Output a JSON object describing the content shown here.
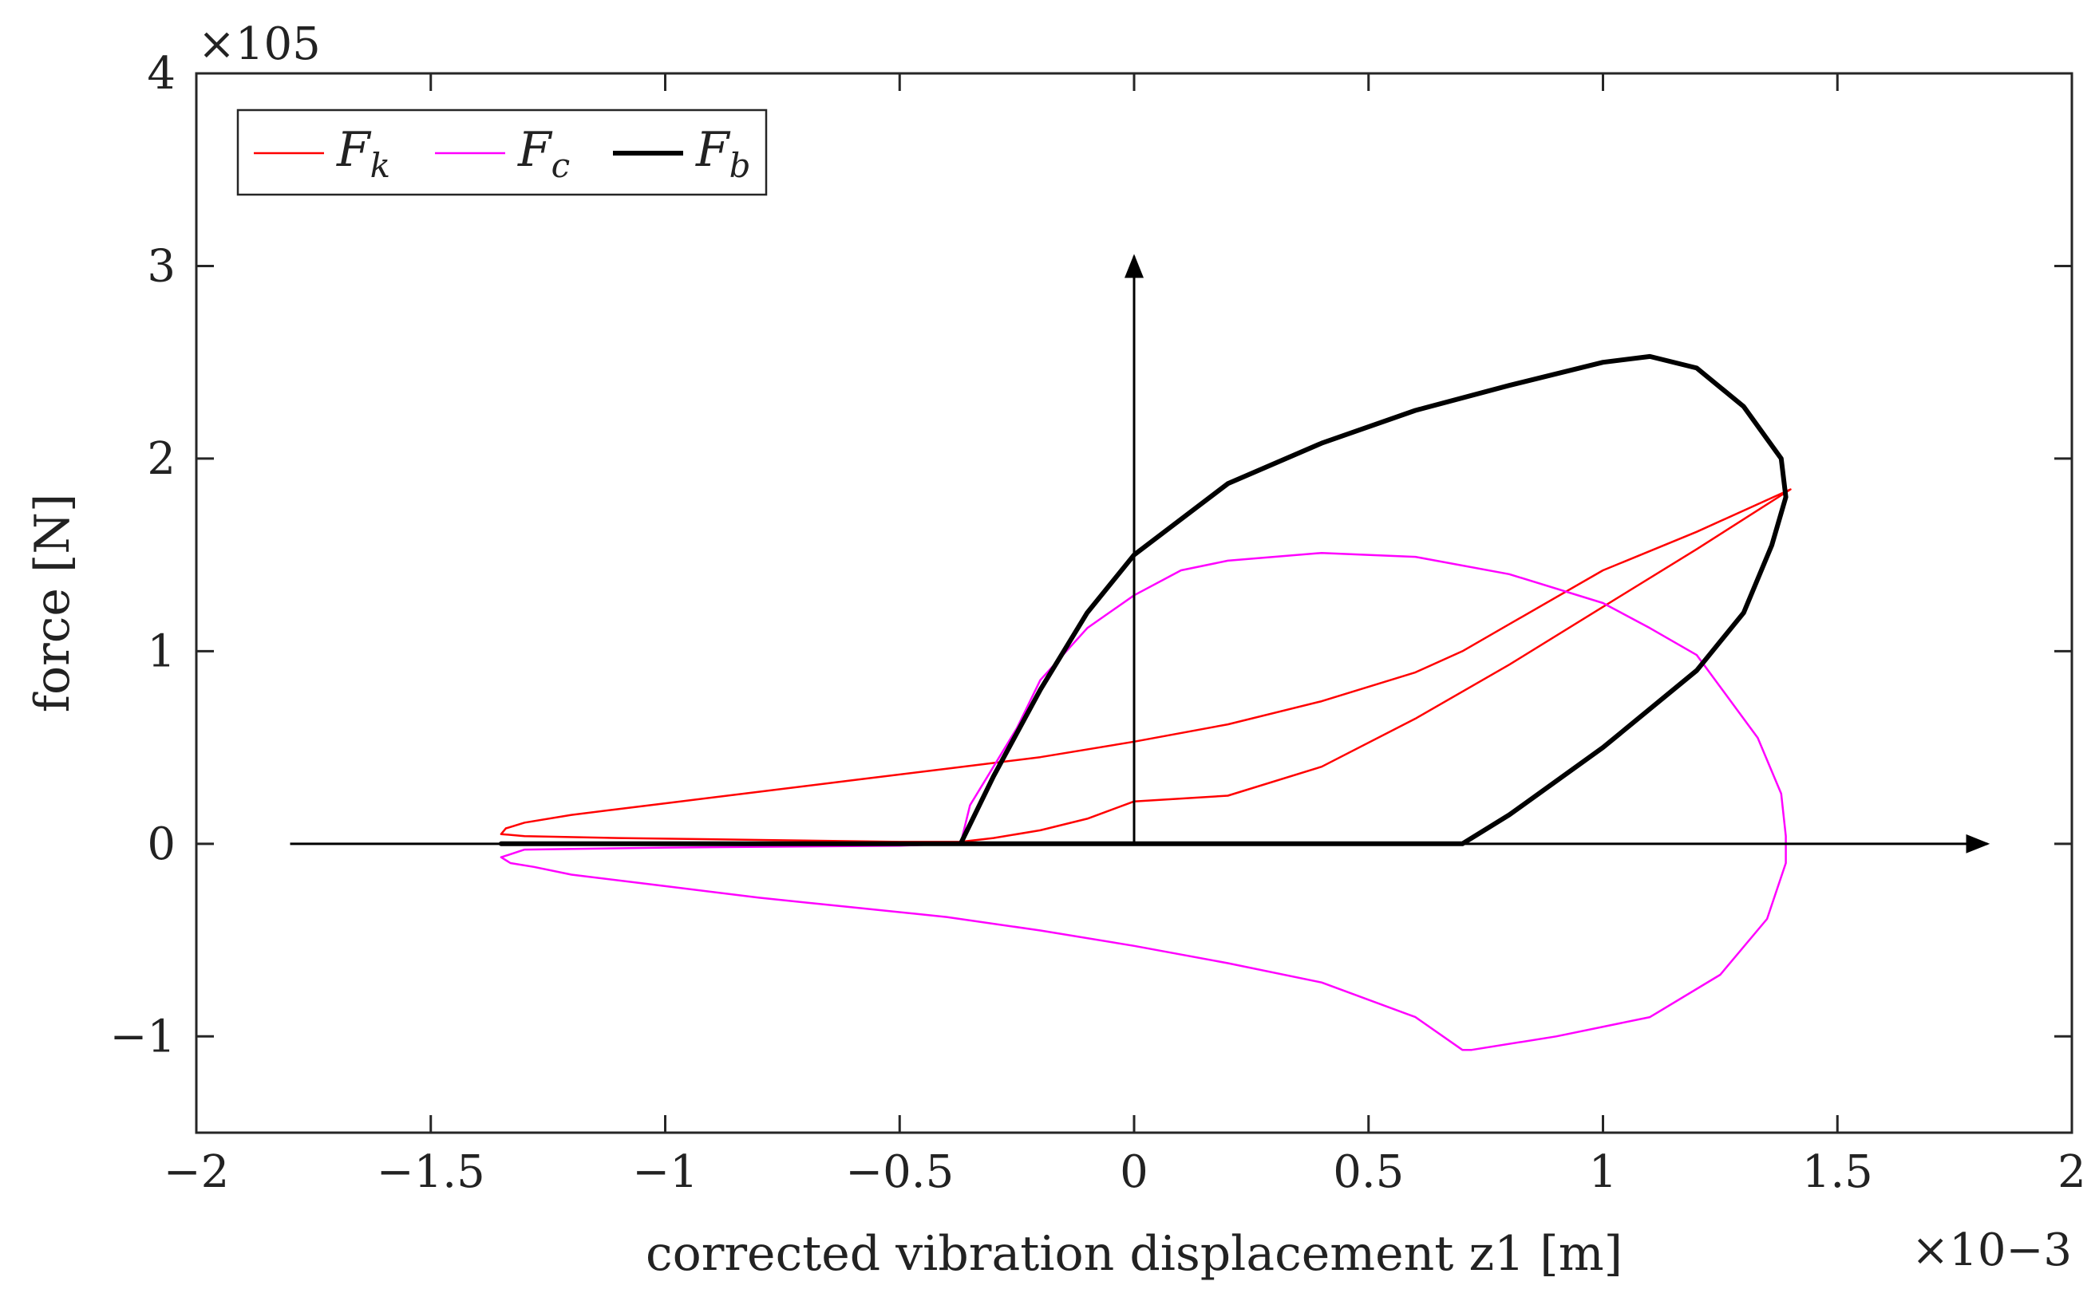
{
  "chart_data": {
    "type": "line",
    "title": "",
    "xlabel": "corrected vibration displacement z1 [m]",
    "ylabel": "force [N]",
    "x_multiplier": "×10−3",
    "y_multiplier": "×105",
    "xlim": [
      -2,
      2
    ],
    "ylim": [
      -1.5,
      4
    ],
    "xticks": [
      -2,
      -1.5,
      -1,
      -0.5,
      0,
      0.5,
      1,
      1.5,
      2
    ],
    "xtick_labels": [
      "−2",
      "−1.5",
      "−1",
      "−0.5",
      "0",
      "0.5",
      "1",
      "1.5",
      "2"
    ],
    "yticks": [
      -1,
      0,
      1,
      2,
      3,
      4
    ],
    "ytick_labels": [
      "−1",
      "0",
      "1",
      "2",
      "3",
      "4"
    ],
    "grid": false,
    "legend_position": "top-left",
    "annotations": [
      {
        "name": "horizontal-axis-arrow",
        "from": [
          -1.8,
          0
        ],
        "to": [
          1.82,
          0
        ]
      },
      {
        "name": "vertical-axis-arrow",
        "from": [
          0,
          0
        ],
        "to": [
          0,
          3.05
        ]
      }
    ],
    "series": [
      {
        "name": "F_k",
        "label_main": "F",
        "label_sub": "k",
        "color": "#ff0000",
        "width": 2.5,
        "points": [
          [
            -1.35,
            0.05
          ],
          [
            -1.34,
            0.08
          ],
          [
            -1.3,
            0.11
          ],
          [
            -1.2,
            0.15
          ],
          [
            -1.0,
            0.21
          ],
          [
            -0.8,
            0.27
          ],
          [
            -0.6,
            0.33
          ],
          [
            -0.4,
            0.39
          ],
          [
            -0.2,
            0.45
          ],
          [
            0.0,
            0.53
          ],
          [
            0.2,
            0.62
          ],
          [
            0.4,
            0.74
          ],
          [
            0.6,
            0.89
          ],
          [
            0.7,
            1.0
          ],
          [
            0.8,
            1.14
          ],
          [
            1.0,
            1.42
          ],
          [
            1.2,
            1.62
          ],
          [
            1.4,
            1.84
          ],
          [
            1.2,
            1.53
          ],
          [
            1.0,
            1.23
          ],
          [
            0.8,
            0.93
          ],
          [
            0.6,
            0.65
          ],
          [
            0.4,
            0.4
          ],
          [
            0.2,
            0.25
          ],
          [
            0.0,
            0.22
          ],
          [
            -0.1,
            0.13
          ],
          [
            -0.2,
            0.07
          ],
          [
            -0.3,
            0.03
          ],
          [
            -0.37,
            0.01
          ],
          [
            -0.5,
            0.01
          ],
          [
            -0.8,
            0.02
          ],
          [
            -1.1,
            0.03
          ],
          [
            -1.3,
            0.04
          ],
          [
            -1.35,
            0.05
          ]
        ]
      },
      {
        "name": "F_c",
        "label_main": "F",
        "label_sub": "c",
        "color": "#ff00ff",
        "width": 2.5,
        "points": [
          [
            -1.35,
            -0.07
          ],
          [
            -1.33,
            -0.1
          ],
          [
            -1.28,
            -0.12
          ],
          [
            -1.2,
            -0.16
          ],
          [
            -1.0,
            -0.22
          ],
          [
            -0.8,
            -0.28
          ],
          [
            -0.6,
            -0.33
          ],
          [
            -0.4,
            -0.38
          ],
          [
            -0.2,
            -0.45
          ],
          [
            0.0,
            -0.53
          ],
          [
            0.2,
            -0.62
          ],
          [
            0.4,
            -0.72
          ],
          [
            0.6,
            -0.9
          ],
          [
            0.7,
            -1.07
          ],
          [
            0.72,
            -1.07
          ],
          [
            0.9,
            -1.0
          ],
          [
            1.1,
            -0.9
          ],
          [
            1.25,
            -0.68
          ],
          [
            1.35,
            -0.39
          ],
          [
            1.39,
            -0.1
          ],
          [
            1.39,
            0.04
          ],
          [
            1.38,
            0.26
          ],
          [
            1.33,
            0.55
          ],
          [
            1.2,
            0.98
          ],
          [
            1.1,
            1.12
          ],
          [
            1.0,
            1.25
          ],
          [
            0.8,
            1.4
          ],
          [
            0.6,
            1.49
          ],
          [
            0.4,
            1.51
          ],
          [
            0.2,
            1.47
          ],
          [
            0.1,
            1.42
          ],
          [
            0.0,
            1.29
          ],
          [
            -0.1,
            1.12
          ],
          [
            -0.2,
            0.85
          ],
          [
            -0.25,
            0.6
          ],
          [
            -0.3,
            0.4
          ],
          [
            -0.35,
            0.2
          ],
          [
            -0.37,
            0.0
          ],
          [
            -0.5,
            -0.01
          ],
          [
            -1.0,
            -0.02
          ],
          [
            -1.3,
            -0.03
          ],
          [
            -1.35,
            -0.07
          ]
        ]
      },
      {
        "name": "F_b",
        "label_main": "F",
        "label_sub": "b",
        "color": "#000000",
        "width": 6,
        "points": [
          [
            -1.35,
            0.0
          ],
          [
            -0.37,
            0.0
          ],
          [
            -0.3,
            0.35
          ],
          [
            -0.2,
            0.8
          ],
          [
            -0.1,
            1.2
          ],
          [
            0.0,
            1.5
          ],
          [
            0.2,
            1.87
          ],
          [
            0.4,
            2.08
          ],
          [
            0.6,
            2.25
          ],
          [
            0.8,
            2.38
          ],
          [
            1.0,
            2.5
          ],
          [
            1.1,
            2.53
          ],
          [
            1.2,
            2.47
          ],
          [
            1.3,
            2.27
          ],
          [
            1.38,
            2.0
          ],
          [
            1.39,
            1.8
          ],
          [
            1.36,
            1.55
          ],
          [
            1.3,
            1.2
          ],
          [
            1.2,
            0.9
          ],
          [
            1.0,
            0.5
          ],
          [
            0.8,
            0.15
          ],
          [
            0.7,
            0.0
          ],
          [
            -0.37,
            0.0
          ]
        ]
      }
    ]
  }
}
